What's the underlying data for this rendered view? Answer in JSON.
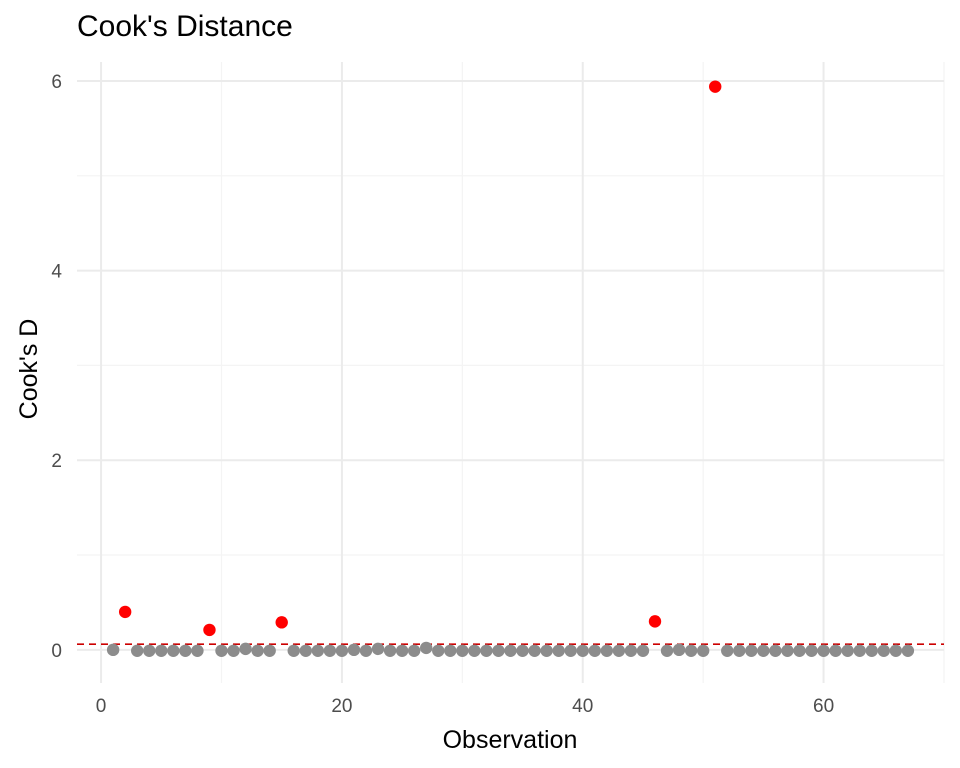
{
  "chart_data": {
    "type": "scatter",
    "title": "Cook's Distance",
    "xlabel": "Observation",
    "ylabel": "Cook's D",
    "xlim": [
      -2,
      70
    ],
    "ylim": [
      -0.35,
      6.2
    ],
    "x_ticks": [
      0,
      20,
      40,
      60
    ],
    "y_ticks": [
      0,
      2,
      4,
      6
    ],
    "grid": true,
    "threshold": 0.0597,
    "colors": {
      "normal": "#8c8c8c",
      "influential": "#ff0000",
      "threshold_line": "#cc0000",
      "grid_major": "#ebebeb",
      "grid_minor": "#f4f4f4"
    },
    "points": [
      {
        "x": 1,
        "y": 0.0
      },
      {
        "x": 2,
        "y": 0.4
      },
      {
        "x": 3,
        "y": -0.01
      },
      {
        "x": 4,
        "y": -0.01
      },
      {
        "x": 5,
        "y": -0.01
      },
      {
        "x": 6,
        "y": -0.01
      },
      {
        "x": 7,
        "y": -0.01
      },
      {
        "x": 8,
        "y": -0.01
      },
      {
        "x": 9,
        "y": 0.21
      },
      {
        "x": 10,
        "y": -0.01
      },
      {
        "x": 11,
        "y": -0.01
      },
      {
        "x": 12,
        "y": 0.01
      },
      {
        "x": 13,
        "y": -0.01
      },
      {
        "x": 14,
        "y": -0.01
      },
      {
        "x": 15,
        "y": 0.29
      },
      {
        "x": 16,
        "y": -0.01
      },
      {
        "x": 17,
        "y": -0.01
      },
      {
        "x": 18,
        "y": -0.01
      },
      {
        "x": 19,
        "y": -0.01
      },
      {
        "x": 20,
        "y": -0.01
      },
      {
        "x": 21,
        "y": 0.0
      },
      {
        "x": 22,
        "y": -0.01
      },
      {
        "x": 23,
        "y": 0.01
      },
      {
        "x": 24,
        "y": -0.01
      },
      {
        "x": 25,
        "y": -0.01
      },
      {
        "x": 26,
        "y": -0.01
      },
      {
        "x": 27,
        "y": 0.02
      },
      {
        "x": 28,
        "y": -0.01
      },
      {
        "x": 29,
        "y": -0.01
      },
      {
        "x": 30,
        "y": -0.01
      },
      {
        "x": 31,
        "y": -0.01
      },
      {
        "x": 32,
        "y": -0.01
      },
      {
        "x": 33,
        "y": -0.01
      },
      {
        "x": 34,
        "y": -0.01
      },
      {
        "x": 35,
        "y": -0.01
      },
      {
        "x": 36,
        "y": -0.01
      },
      {
        "x": 37,
        "y": -0.01
      },
      {
        "x": 38,
        "y": -0.01
      },
      {
        "x": 39,
        "y": -0.01
      },
      {
        "x": 40,
        "y": -0.01
      },
      {
        "x": 41,
        "y": -0.01
      },
      {
        "x": 42,
        "y": -0.01
      },
      {
        "x": 43,
        "y": -0.01
      },
      {
        "x": 44,
        "y": -0.01
      },
      {
        "x": 45,
        "y": -0.01
      },
      {
        "x": 46,
        "y": 0.3
      },
      {
        "x": 47,
        "y": -0.01
      },
      {
        "x": 48,
        "y": 0.0
      },
      {
        "x": 49,
        "y": -0.01
      },
      {
        "x": 50,
        "y": -0.01
      },
      {
        "x": 51,
        "y": 5.94
      },
      {
        "x": 52,
        "y": -0.01
      },
      {
        "x": 53,
        "y": -0.01
      },
      {
        "x": 54,
        "y": -0.01
      },
      {
        "x": 55,
        "y": -0.01
      },
      {
        "x": 56,
        "y": -0.01
      },
      {
        "x": 57,
        "y": -0.01
      },
      {
        "x": 58,
        "y": -0.01
      },
      {
        "x": 59,
        "y": -0.01
      },
      {
        "x": 60,
        "y": -0.01
      },
      {
        "x": 61,
        "y": -0.01
      },
      {
        "x": 62,
        "y": -0.01
      },
      {
        "x": 63,
        "y": -0.01
      },
      {
        "x": 64,
        "y": -0.01
      },
      {
        "x": 65,
        "y": -0.01
      },
      {
        "x": 66,
        "y": -0.01
      },
      {
        "x": 67,
        "y": -0.01
      }
    ]
  }
}
